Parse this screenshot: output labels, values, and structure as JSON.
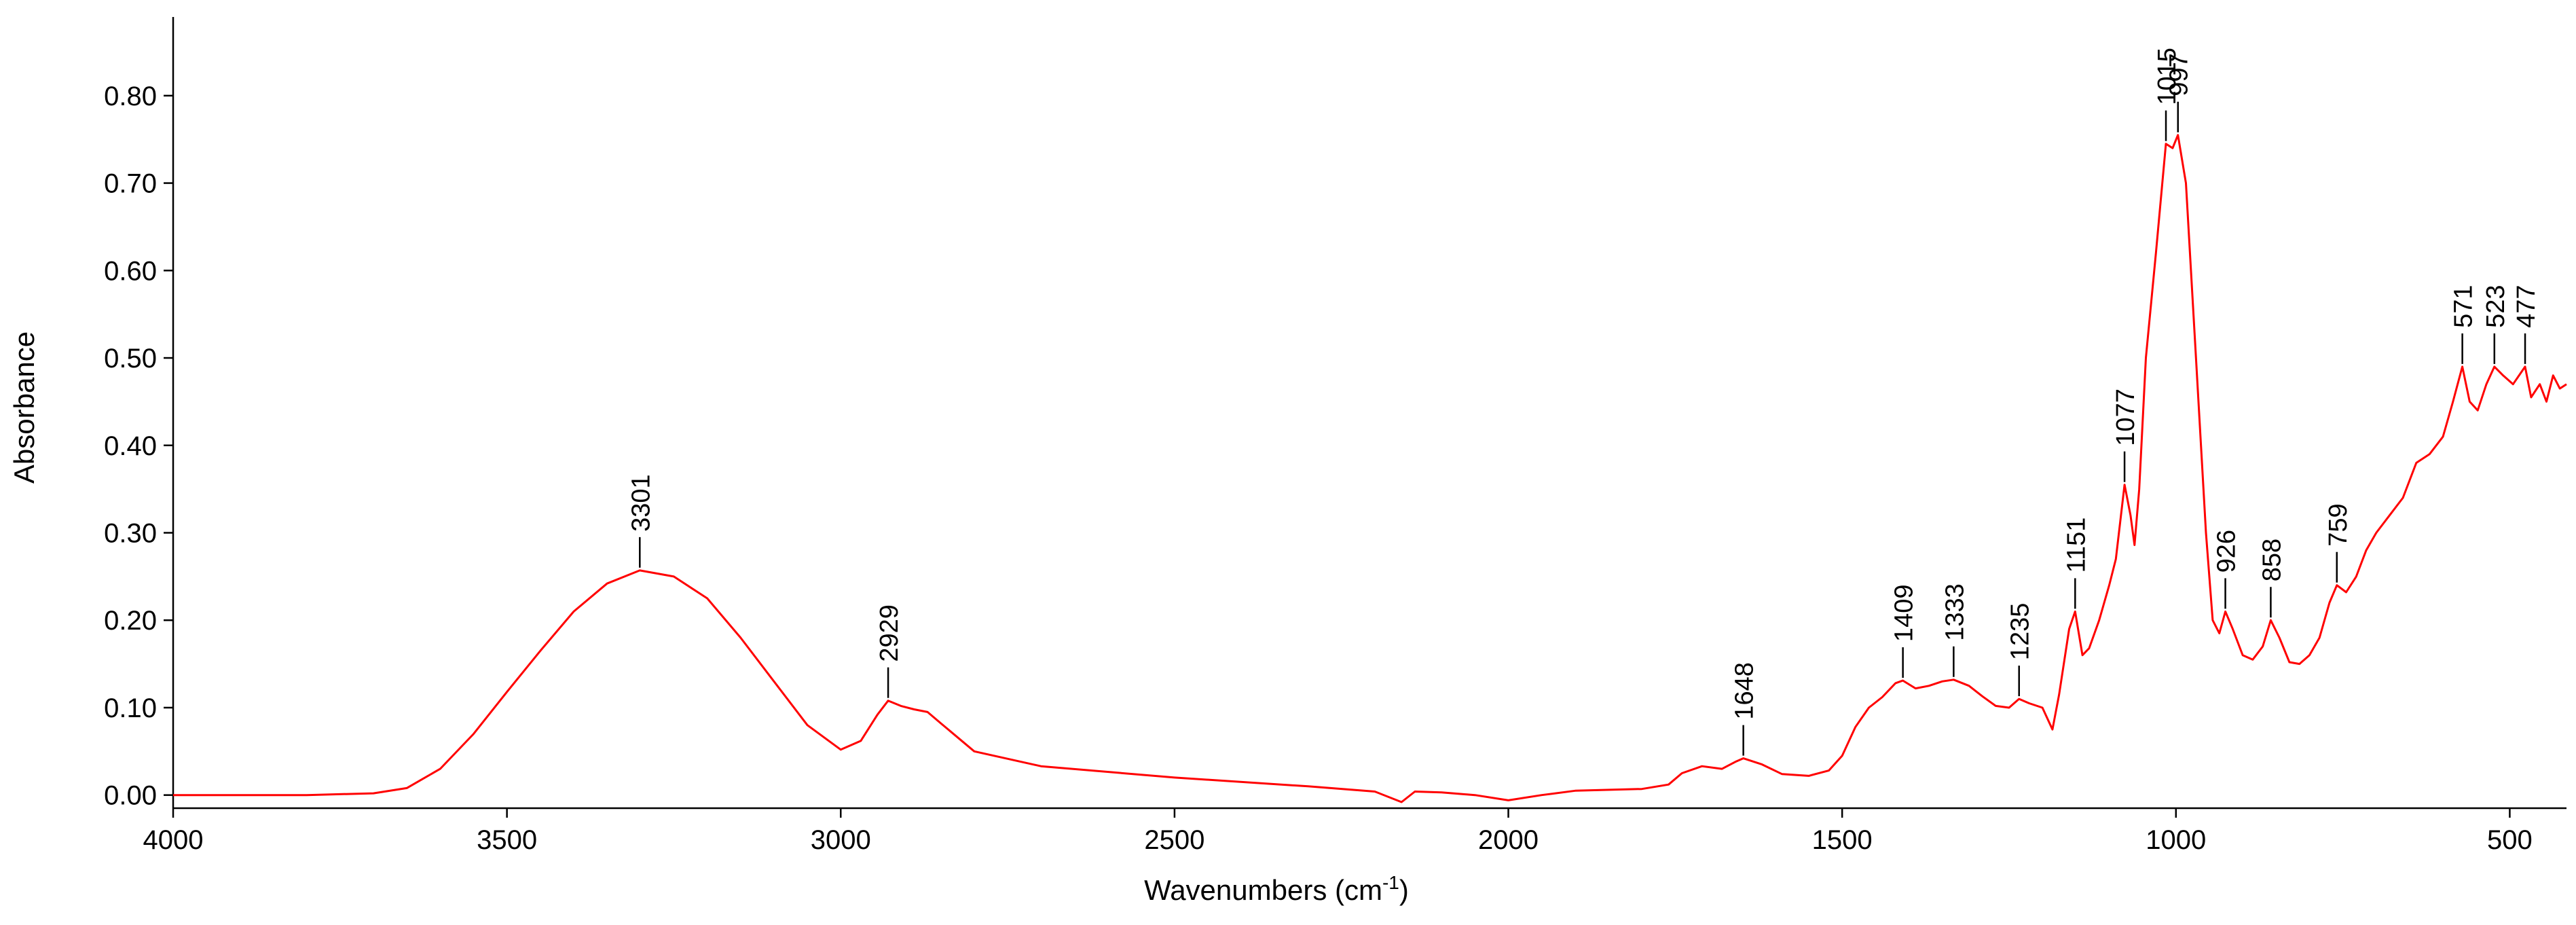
{
  "chart_data": {
    "type": "line",
    "title": "",
    "xlabel": "Wavenumbers (cm",
    "xlabel_sup": "-1",
    "xlabel_close": ")",
    "ylabel": "Absorbance",
    "xlim": [
      4000,
      415
    ],
    "x_reversed": true,
    "ylim": [
      -0.015,
      0.89
    ],
    "x_ticks": [
      4000,
      3500,
      3000,
      2500,
      2000,
      1500,
      1000,
      500
    ],
    "x_tick_labels": [
      "4000",
      "3500",
      "3000",
      "2500",
      "2000",
      "1500",
      "1000",
      "500"
    ],
    "y_ticks": [
      0.0,
      0.1,
      0.2,
      0.3,
      0.4,
      0.5,
      0.6,
      0.7,
      0.8
    ],
    "y_tick_labels": [
      "0.00",
      "0.10",
      "0.20",
      "0.30",
      "0.40",
      "0.50",
      "0.60",
      "0.70",
      "0.80"
    ],
    "grid": false,
    "line_color": "#ff0000",
    "series": [
      {
        "points": [
          [
            4000,
            0.0
          ],
          [
            3800,
            0.0
          ],
          [
            3700,
            0.002
          ],
          [
            3650,
            0.008
          ],
          [
            3600,
            0.03
          ],
          [
            3550,
            0.07
          ],
          [
            3500,
            0.118
          ],
          [
            3450,
            0.165
          ],
          [
            3400,
            0.21
          ],
          [
            3350,
            0.242
          ],
          [
            3301,
            0.257
          ],
          [
            3250,
            0.25
          ],
          [
            3200,
            0.225
          ],
          [
            3150,
            0.18
          ],
          [
            3100,
            0.13
          ],
          [
            3050,
            0.08
          ],
          [
            3000,
            0.052
          ],
          [
            2970,
            0.062
          ],
          [
            2945,
            0.092
          ],
          [
            2929,
            0.108
          ],
          [
            2910,
            0.102
          ],
          [
            2890,
            0.098
          ],
          [
            2870,
            0.095
          ],
          [
            2850,
            0.082
          ],
          [
            2800,
            0.05
          ],
          [
            2700,
            0.033
          ],
          [
            2500,
            0.02
          ],
          [
            2300,
            0.01
          ],
          [
            2200,
            0.004
          ],
          [
            2160,
            -0.008
          ],
          [
            2140,
            0.004
          ],
          [
            2100,
            0.003
          ],
          [
            2050,
            0.0
          ],
          [
            2000,
            -0.006
          ],
          [
            1950,
            0.0
          ],
          [
            1900,
            0.005
          ],
          [
            1800,
            0.007
          ],
          [
            1760,
            0.012
          ],
          [
            1740,
            0.025
          ],
          [
            1710,
            0.033
          ],
          [
            1680,
            0.03
          ],
          [
            1660,
            0.038
          ],
          [
            1648,
            0.042
          ],
          [
            1620,
            0.035
          ],
          [
            1590,
            0.024
          ],
          [
            1550,
            0.022
          ],
          [
            1520,
            0.028
          ],
          [
            1500,
            0.045
          ],
          [
            1480,
            0.078
          ],
          [
            1460,
            0.1
          ],
          [
            1440,
            0.112
          ],
          [
            1420,
            0.128
          ],
          [
            1409,
            0.131
          ],
          [
            1390,
            0.122
          ],
          [
            1370,
            0.125
          ],
          [
            1350,
            0.13
          ],
          [
            1333,
            0.132
          ],
          [
            1310,
            0.125
          ],
          [
            1290,
            0.113
          ],
          [
            1270,
            0.102
          ],
          [
            1250,
            0.1
          ],
          [
            1235,
            0.11
          ],
          [
            1220,
            0.105
          ],
          [
            1200,
            0.1
          ],
          [
            1185,
            0.075
          ],
          [
            1175,
            0.115
          ],
          [
            1160,
            0.19
          ],
          [
            1151,
            0.21
          ],
          [
            1140,
            0.16
          ],
          [
            1130,
            0.168
          ],
          [
            1115,
            0.2
          ],
          [
            1100,
            0.24
          ],
          [
            1090,
            0.27
          ],
          [
            1077,
            0.355
          ],
          [
            1068,
            0.32
          ],
          [
            1062,
            0.286
          ],
          [
            1055,
            0.35
          ],
          [
            1045,
            0.5
          ],
          [
            1030,
            0.62
          ],
          [
            1015,
            0.745
          ],
          [
            1005,
            0.74
          ],
          [
            997,
            0.755
          ],
          [
            985,
            0.7
          ],
          [
            970,
            0.5
          ],
          [
            955,
            0.3
          ],
          [
            945,
            0.2
          ],
          [
            935,
            0.185
          ],
          [
            926,
            0.21
          ],
          [
            915,
            0.19
          ],
          [
            900,
            0.16
          ],
          [
            885,
            0.155
          ],
          [
            870,
            0.17
          ],
          [
            858,
            0.2
          ],
          [
            845,
            0.18
          ],
          [
            830,
            0.152
          ],
          [
            815,
            0.15
          ],
          [
            800,
            0.16
          ],
          [
            785,
            0.18
          ],
          [
            770,
            0.22
          ],
          [
            759,
            0.24
          ],
          [
            745,
            0.232
          ],
          [
            730,
            0.25
          ],
          [
            715,
            0.28
          ],
          [
            700,
            0.3
          ],
          [
            680,
            0.32
          ],
          [
            660,
            0.34
          ],
          [
            640,
            0.38
          ],
          [
            620,
            0.39
          ],
          [
            600,
            0.41
          ],
          [
            585,
            0.45
          ],
          [
            571,
            0.49
          ],
          [
            560,
            0.45
          ],
          [
            548,
            0.44
          ],
          [
            535,
            0.47
          ],
          [
            523,
            0.49
          ],
          [
            510,
            0.48
          ],
          [
            495,
            0.47
          ],
          [
            477,
            0.49
          ],
          [
            468,
            0.455
          ],
          [
            455,
            0.47
          ],
          [
            445,
            0.45
          ],
          [
            435,
            0.48
          ],
          [
            425,
            0.465
          ],
          [
            415,
            0.47
          ]
        ]
      }
    ],
    "peak_labels": [
      {
        "wavenumber": 3301,
        "label": "3301",
        "y": 0.257
      },
      {
        "wavenumber": 2929,
        "label": "2929",
        "y": 0.108
      },
      {
        "wavenumber": 1648,
        "label": "1648",
        "y": 0.042
      },
      {
        "wavenumber": 1409,
        "label": "1409",
        "y": 0.131
      },
      {
        "wavenumber": 1333,
        "label": "1333",
        "y": 0.132
      },
      {
        "wavenumber": 1235,
        "label": "1235",
        "y": 0.11
      },
      {
        "wavenumber": 1151,
        "label": "1151",
        "y": 0.21
      },
      {
        "wavenumber": 1077,
        "label": "1077",
        "y": 0.355
      },
      {
        "wavenumber": 1015,
        "label": "1015",
        "y": 0.745
      },
      {
        "wavenumber": 997,
        "label": "997",
        "y": 0.755
      },
      {
        "wavenumber": 926,
        "label": "926",
        "y": 0.21
      },
      {
        "wavenumber": 858,
        "label": "858",
        "y": 0.2
      },
      {
        "wavenumber": 759,
        "label": "759",
        "y": 0.24
      },
      {
        "wavenumber": 571,
        "label": "571",
        "y": 0.49
      },
      {
        "wavenumber": 523,
        "label": "523",
        "y": 0.49
      },
      {
        "wavenumber": 477,
        "label": "477",
        "y": 0.49
      }
    ]
  }
}
